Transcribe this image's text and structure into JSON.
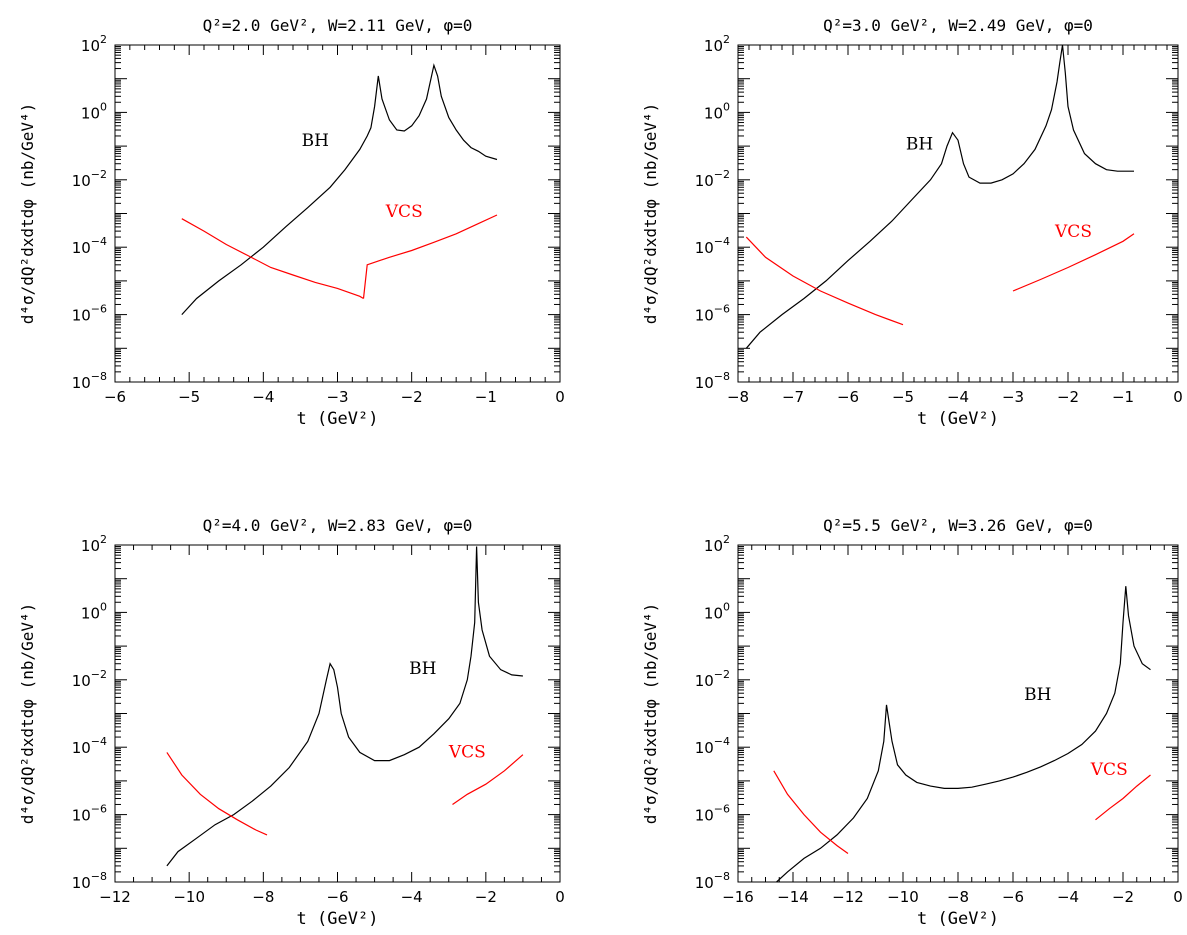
{
  "chart_data": [
    {
      "type": "line",
      "title": "Q²=2.0 GeV², W=2.11 GeV, φ=0",
      "xlabel": "t (GeV²)",
      "ylabel": "d⁴σ/dQ²dxdtdφ (nb/GeV⁴)",
      "xlim": [
        -6,
        0
      ],
      "ylim": [
        1e-08,
        100
      ],
      "yscale": "log",
      "x_ticks": [
        -6,
        -5,
        -4,
        -3,
        -2,
        -1,
        0
      ],
      "y_ticks": [
        -8,
        -6,
        -4,
        -2,
        0,
        2
      ],
      "annotations": [
        {
          "text": "BH",
          "x": -3.3,
          "y": 0.1,
          "color": "#000000"
        },
        {
          "text": "VCS",
          "x": -2.1,
          "y": 0.0008,
          "color": "#ff0000"
        }
      ],
      "series": [
        {
          "key": "BH",
          "color": "#000000",
          "x": [
            -5.1,
            -4.9,
            -4.6,
            -4.3,
            -4.0,
            -3.7,
            -3.4,
            -3.1,
            -2.9,
            -2.7,
            -2.6,
            -2.55,
            -2.5,
            -2.45,
            -2.4,
            -2.3,
            -2.2,
            -2.1,
            -2.0,
            -1.9,
            -1.8,
            -1.7,
            -1.65,
            -1.6,
            -1.5,
            -1.4,
            -1.3,
            -1.2,
            -1.1,
            -1.0,
            -0.85
          ],
          "y": [
            1e-06,
            3e-06,
            1e-05,
            3e-05,
            0.0001,
            0.0004,
            0.0015,
            0.006,
            0.02,
            0.08,
            0.2,
            0.35,
            1.5,
            12,
            2.5,
            0.6,
            0.3,
            0.28,
            0.4,
            0.8,
            2.5,
            25,
            12,
            3,
            0.7,
            0.3,
            0.15,
            0.09,
            0.07,
            0.05,
            0.04
          ]
        },
        {
          "key": "VCS-1",
          "color": "#ff0000",
          "x": [
            -5.1,
            -4.8,
            -4.5,
            -4.2,
            -3.9,
            -3.6,
            -3.3,
            -3.0,
            -2.7,
            -2.65
          ],
          "y": [
            0.0007,
            0.0003,
            0.00012,
            5.5e-05,
            2.5e-05,
            1.5e-05,
            9e-06,
            6e-06,
            3.5e-06,
            3e-06
          ]
        },
        {
          "key": "VCS-2",
          "color": "#ff0000",
          "x": [
            -2.65,
            -2.6,
            -2.3,
            -2.0,
            -1.7,
            -1.4,
            -1.1,
            -0.85
          ],
          "y": [
            3e-06,
            3e-05,
            5e-05,
            8e-05,
            0.00014,
            0.00025,
            0.0005,
            0.0009
          ]
        }
      ]
    },
    {
      "type": "line",
      "title": "Q²=3.0 GeV², W=2.49 GeV, φ=0",
      "xlabel": "t (GeV²)",
      "ylabel": "d⁴σ/dQ²dxdtdφ (nb/GeV⁴)",
      "xlim": [
        -8,
        0
      ],
      "ylim": [
        1e-08,
        100
      ],
      "yscale": "log",
      "x_ticks": [
        -8,
        -7,
        -6,
        -5,
        -4,
        -3,
        -2,
        -1,
        0
      ],
      "y_ticks": [
        -8,
        -6,
        -4,
        -2,
        0,
        2
      ],
      "annotations": [
        {
          "text": "BH",
          "x": -4.7,
          "y": 0.08,
          "color": "#000000"
        },
        {
          "text": "VCS",
          "x": -1.9,
          "y": 0.0002,
          "color": "#ff0000"
        }
      ],
      "series": [
        {
          "key": "BH",
          "color": "#000000",
          "x": [
            -7.85,
            -7.6,
            -7.2,
            -6.8,
            -6.4,
            -6.0,
            -5.6,
            -5.2,
            -4.8,
            -4.5,
            -4.3,
            -4.2,
            -4.1,
            -4.0,
            -3.9,
            -3.8,
            -3.6,
            -3.4,
            -3.2,
            -3.0,
            -2.8,
            -2.6,
            -2.4,
            -2.3,
            -2.2,
            -2.15,
            -2.1,
            -2.05,
            -2.0,
            -1.9,
            -1.7,
            -1.5,
            -1.3,
            -1.1,
            -0.8
          ],
          "y": [
            1e-07,
            3e-07,
            1e-06,
            3e-06,
            1e-05,
            4e-05,
            0.00015,
            0.0006,
            0.003,
            0.01,
            0.03,
            0.1,
            0.25,
            0.15,
            0.03,
            0.012,
            0.008,
            0.008,
            0.01,
            0.015,
            0.03,
            0.08,
            0.4,
            1.2,
            8,
            30,
            100,
            15,
            1.5,
            0.3,
            0.06,
            0.03,
            0.02,
            0.018,
            0.018
          ]
        },
        {
          "key": "VCS-1",
          "color": "#ff0000",
          "x": [
            -7.85,
            -7.5,
            -7.0,
            -6.5,
            -6.0,
            -5.5,
            -5.0
          ],
          "y": [
            0.0002,
            5e-05,
            1.4e-05,
            5e-06,
            2.2e-06,
            1e-06,
            5e-07
          ]
        },
        {
          "key": "VCS-2",
          "color": "#ff0000",
          "x": [
            -3.0,
            -2.5,
            -2.0,
            -1.5,
            -1.0,
            -0.8
          ],
          "y": [
            5e-06,
            1.1e-05,
            2.5e-05,
            6e-05,
            0.00015,
            0.00025
          ]
        }
      ]
    },
    {
      "type": "line",
      "title": "Q²=4.0 GeV², W=2.83 GeV, φ=0",
      "xlabel": "t (GeV²)",
      "ylabel": "d⁴σ/dQ²dxdtdφ (nb/GeV⁴)",
      "xlim": [
        -12,
        0
      ],
      "ylim": [
        1e-08,
        100
      ],
      "yscale": "log",
      "x_ticks": [
        -12,
        -10,
        -8,
        -6,
        -4,
        -2,
        0
      ],
      "y_ticks": [
        -8,
        -6,
        -4,
        -2,
        0,
        2
      ],
      "annotations": [
        {
          "text": "BH",
          "x": -3.7,
          "y": 0.015,
          "color": "#000000"
        },
        {
          "text": "VCS",
          "x": -2.5,
          "y": 5e-05,
          "color": "#ff0000"
        }
      ],
      "series": [
        {
          "key": "BH",
          "color": "#000000",
          "x": [
            -10.6,
            -10.3,
            -9.8,
            -9.3,
            -8.8,
            -8.3,
            -7.8,
            -7.3,
            -6.8,
            -6.5,
            -6.3,
            -6.2,
            -6.1,
            -6.0,
            -5.9,
            -5.7,
            -5.4,
            -5.0,
            -4.6,
            -4.2,
            -3.8,
            -3.4,
            -3.0,
            -2.7,
            -2.5,
            -2.4,
            -2.3,
            -2.25,
            -2.2,
            -2.1,
            -1.9,
            -1.6,
            -1.3,
            -1.0
          ],
          "y": [
            3e-08,
            8e-08,
            2e-07,
            5e-07,
            1e-06,
            2.5e-06,
            7e-06,
            2.5e-05,
            0.00015,
            0.001,
            0.01,
            0.03,
            0.02,
            0.006,
            0.001,
            0.0002,
            7e-05,
            4e-05,
            4e-05,
            6e-05,
            0.0001,
            0.00025,
            0.0007,
            0.002,
            0.01,
            0.05,
            0.5,
            90,
            2,
            0.3,
            0.05,
            0.02,
            0.014,
            0.013
          ]
        },
        {
          "key": "VCS-1",
          "color": "#ff0000",
          "x": [
            -10.6,
            -10.2,
            -9.7,
            -9.2,
            -8.7,
            -8.2,
            -7.9
          ],
          "y": [
            7e-05,
            1.5e-05,
            4e-06,
            1.5e-06,
            7e-07,
            3.5e-07,
            2.5e-07
          ]
        },
        {
          "key": "VCS-2",
          "color": "#ff0000",
          "x": [
            -2.9,
            -2.5,
            -2.0,
            -1.5,
            -1.0
          ],
          "y": [
            2e-06,
            4e-06,
            8e-06,
            2e-05,
            6e-05
          ]
        }
      ]
    },
    {
      "type": "line",
      "title": "Q²=5.5 GeV², W=3.26 GeV, φ=0",
      "xlabel": "t (GeV²)",
      "ylabel": "d⁴σ/dQ²dxdtdφ (nb/GeV⁴)",
      "xlim": [
        -16,
        0
      ],
      "ylim": [
        1e-08,
        100
      ],
      "yscale": "log",
      "x_ticks": [
        -16,
        -14,
        -12,
        -10,
        -8,
        -6,
        -4,
        -2,
        0
      ],
      "y_ticks": [
        -8,
        -6,
        -4,
        -2,
        0,
        2
      ],
      "annotations": [
        {
          "text": "BH",
          "x": -5.1,
          "y": 0.0025,
          "color": "#000000"
        },
        {
          "text": "VCS",
          "x": -2.5,
          "y": 1.5e-05,
          "color": "#ff0000"
        }
      ],
      "series": [
        {
          "key": "BH",
          "color": "#000000",
          "x": [
            -14.6,
            -14.2,
            -13.6,
            -13.0,
            -12.4,
            -11.8,
            -11.3,
            -10.9,
            -10.7,
            -10.6,
            -10.5,
            -10.4,
            -10.2,
            -9.9,
            -9.5,
            -9.0,
            -8.5,
            -8.0,
            -7.5,
            -7.0,
            -6.5,
            -6.0,
            -5.5,
            -5.0,
            -4.5,
            -4.0,
            -3.5,
            -3.0,
            -2.6,
            -2.3,
            -2.1,
            -2.0,
            -1.9,
            -1.8,
            -1.6,
            -1.3,
            -1.0
          ],
          "y": [
            1e-08,
            2e-08,
            5e-08,
            1e-07,
            2.5e-07,
            8e-07,
            3e-06,
            2e-05,
            0.00015,
            0.0018,
            0.0005,
            0.00015,
            3e-05,
            1.5e-05,
            9e-06,
            7e-06,
            6e-06,
            6e-06,
            6.5e-06,
            8e-06,
            1e-05,
            1.3e-05,
            1.8e-05,
            2.6e-05,
            4e-05,
            6.5e-05,
            0.00012,
            0.0003,
            0.001,
            0.004,
            0.03,
            0.5,
            6,
            0.8,
            0.1,
            0.03,
            0.02
          ]
        },
        {
          "key": "VCS-1",
          "color": "#ff0000",
          "x": [
            -14.7,
            -14.2,
            -13.6,
            -13.0,
            -12.4,
            -12.0
          ],
          "y": [
            2e-05,
            4e-06,
            1e-06,
            3e-07,
            1.2e-07,
            7e-08
          ]
        },
        {
          "key": "VCS-2",
          "color": "#ff0000",
          "x": [
            -3.0,
            -2.5,
            -2.0,
            -1.5,
            -1.0
          ],
          "y": [
            7e-07,
            1.5e-06,
            3e-06,
            7e-06,
            1.5e-05
          ]
        }
      ]
    }
  ]
}
